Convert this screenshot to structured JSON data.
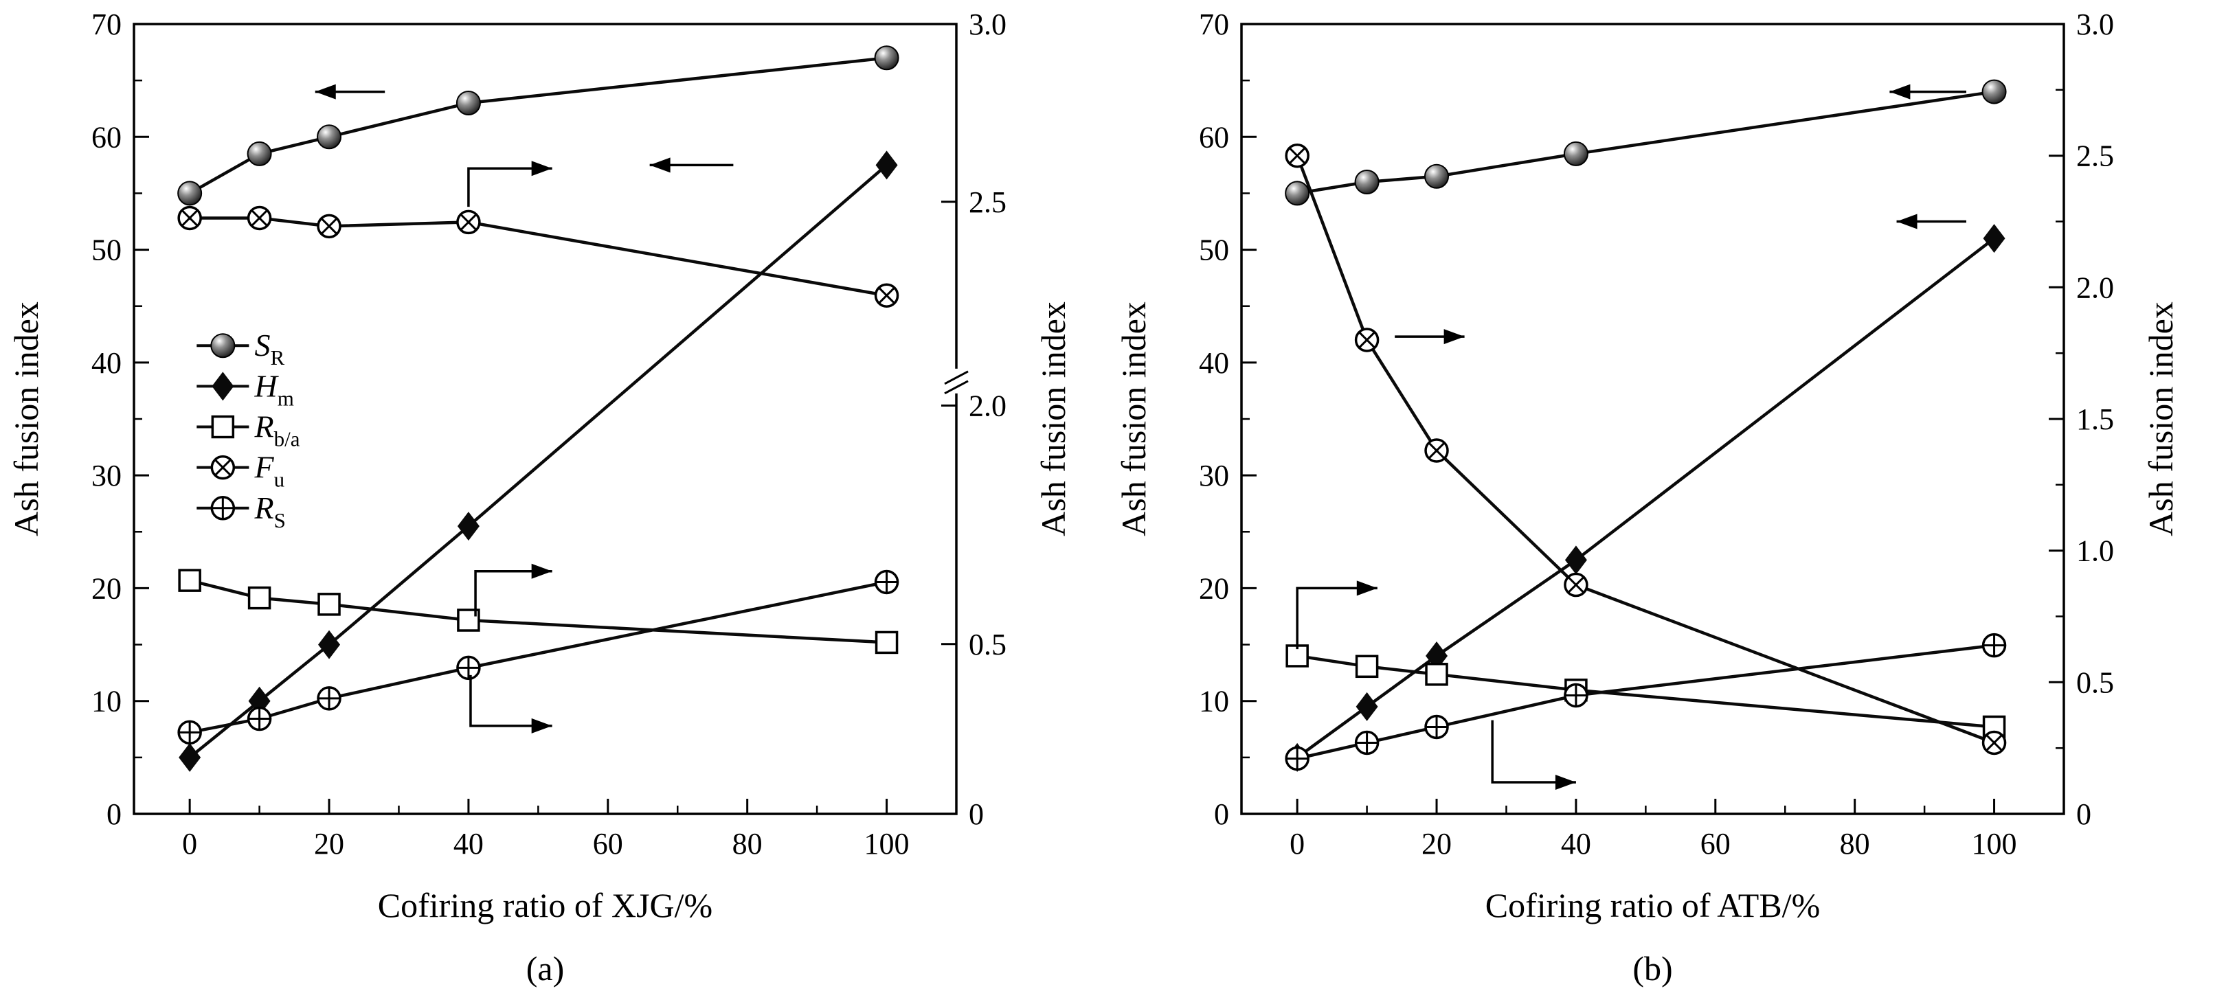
{
  "figure_name": "ash-fusion-index-dual-panel-line-chart",
  "chart_data": [
    {
      "type": "line",
      "panel_label": "(a)",
      "xlabel": "Cofiring ratio of XJG/%",
      "ylabel_left": "Ash fusion index",
      "ylabel_right": "Ash fusion index",
      "x": [
        0,
        10,
        20,
        40,
        100
      ],
      "xlim": [
        -8,
        110
      ],
      "x_ticks": [
        0,
        20,
        40,
        60,
        80,
        100
      ],
      "x_minor_ticks": [
        10,
        30,
        50,
        70,
        90
      ],
      "ylim_left": [
        0,
        70
      ],
      "y_left_ticks": [
        0,
        10,
        20,
        30,
        40,
        50,
        60,
        70
      ],
      "right_axis": {
        "range": [
          0,
          3.0
        ],
        "has_break": true,
        "break_pos": 0.452,
        "ticks": [
          {
            "label": "3.0",
            "pos": 0.0
          },
          {
            "label": "2.5",
            "pos": 0.225
          },
          {
            "label": "2.0",
            "pos": 0.483
          },
          {
            "label": "0.5",
            "pos": 0.785
          },
          {
            "label": "0",
            "pos": 1.0
          }
        ],
        "minor_tick_pos": []
      },
      "series": [
        {
          "name": "S_R",
          "label_main": "S",
          "label_sub": "R",
          "marker": "sphere",
          "axis": "left",
          "values": [
            55,
            58.5,
            60,
            63,
            67
          ]
        },
        {
          "name": "H_m",
          "label_main": "H",
          "label_sub": "m",
          "marker": "diamond",
          "axis": "left",
          "values": [
            5,
            10,
            15,
            25.5,
            57.5
          ]
        },
        {
          "name": "R_b/a",
          "label_main": "R",
          "label_sub": "b/a",
          "marker": "open-square",
          "axis": "right",
          "values": [
            0.9,
            0.79,
            0.75,
            0.65,
            0.51
          ]
        },
        {
          "name": "F_u",
          "label_main": "F",
          "label_sub": "u",
          "marker": "circle-x",
          "axis": "right",
          "values": [
            2.46,
            2.46,
            2.44,
            2.45,
            2.27
          ]
        },
        {
          "name": "R_S",
          "label_main": "R",
          "label_sub": "S",
          "marker": "circle-plus",
          "axis": "right",
          "values": [
            0.24,
            0.28,
            0.34,
            0.43,
            0.89
          ]
        }
      ],
      "legend": {
        "show": true,
        "position": "left-middle"
      },
      "arrows": [
        {
          "series": "S_R",
          "points": [
            [
              28,
              64
            ],
            [
              18,
              64
            ]
          ]
        },
        {
          "series": "F_u",
          "points": [
            [
              40,
              53.8
            ],
            [
              40,
              57.2
            ],
            [
              52,
              57.2
            ]
          ]
        },
        {
          "series": "H_m",
          "points": [
            [
              78,
              57.5
            ],
            [
              66,
              57.5
            ]
          ]
        },
        {
          "series": "R_b/a",
          "points": [
            [
              41,
              17.5
            ],
            [
              41,
              21.5
            ],
            [
              52,
              21.5
            ]
          ]
        },
        {
          "series": "R_S",
          "points": [
            [
              40.3,
              12.3
            ],
            [
              40.3,
              7.8
            ],
            [
              52,
              7.8
            ]
          ]
        }
      ]
    },
    {
      "type": "line",
      "panel_label": "(b)",
      "xlabel": "Cofiring ratio of ATB/%",
      "ylabel_left": "Ash fusion index",
      "ylabel_right": "Ash fusion index",
      "x": [
        0,
        10,
        20,
        40,
        100
      ],
      "xlim": [
        -8,
        110
      ],
      "x_ticks": [
        0,
        20,
        40,
        60,
        80,
        100
      ],
      "x_minor_ticks": [
        10,
        30,
        50,
        70,
        90
      ],
      "ylim_left": [
        0,
        70
      ],
      "y_left_ticks": [
        0,
        10,
        20,
        30,
        40,
        50,
        60,
        70
      ],
      "right_axis": {
        "range": [
          0,
          3.0
        ],
        "has_break": false,
        "break_pos": null,
        "ticks": [
          {
            "label": "3.0",
            "pos": 0.0
          },
          {
            "label": "2.5",
            "pos": 0.1667
          },
          {
            "label": "2.0",
            "pos": 0.3333
          },
          {
            "label": "1.5",
            "pos": 0.5
          },
          {
            "label": "1.0",
            "pos": 0.6667
          },
          {
            "label": "0.5",
            "pos": 0.8333
          },
          {
            "label": "0",
            "pos": 1.0
          }
        ],
        "minor_tick_pos": [
          0.0833,
          0.25,
          0.4167,
          0.5833,
          0.75,
          0.9167
        ]
      },
      "series": [
        {
          "name": "S_R",
          "label_main": "S",
          "label_sub": "R",
          "marker": "sphere",
          "axis": "left",
          "values": [
            55,
            56,
            56.5,
            58.5,
            64
          ]
        },
        {
          "name": "H_m",
          "label_main": "H",
          "label_sub": "m",
          "marker": "diamond",
          "axis": "left",
          "values": [
            5,
            9.5,
            14,
            22.5,
            51
          ]
        },
        {
          "name": "R_b/a",
          "label_main": "R",
          "label_sub": "b/a",
          "marker": "open-square",
          "axis": "right",
          "values": [
            0.6,
            0.56,
            0.53,
            0.47,
            0.33
          ]
        },
        {
          "name": "F_u",
          "label_main": "F",
          "label_sub": "u",
          "marker": "circle-x",
          "axis": "right",
          "values": [
            2.5,
            1.8,
            1.38,
            0.87,
            0.27
          ]
        },
        {
          "name": "R_S",
          "label_main": "R",
          "label_sub": "S",
          "marker": "circle-plus",
          "axis": "right",
          "values": [
            0.21,
            0.27,
            0.33,
            0.45,
            0.64
          ]
        }
      ],
      "legend": {
        "show": false
      },
      "arrows": [
        {
          "series": "S_R",
          "points": [
            [
              96,
              64
            ],
            [
              85,
              64
            ]
          ]
        },
        {
          "series": "H_m",
          "points": [
            [
              96,
              52.5
            ],
            [
              86,
              52.5
            ]
          ]
        },
        {
          "series": "F_u",
          "points": [
            [
              14,
              42.3
            ],
            [
              24,
              42.3
            ]
          ]
        },
        {
          "series": "R_b/a",
          "points": [
            [
              0,
              14.6
            ],
            [
              0,
              20
            ],
            [
              11.5,
              20
            ]
          ]
        },
        {
          "series": "R_S",
          "points": [
            [
              28,
              8.3
            ],
            [
              28,
              2.8
            ],
            [
              40,
              2.8
            ]
          ]
        }
      ]
    }
  ]
}
